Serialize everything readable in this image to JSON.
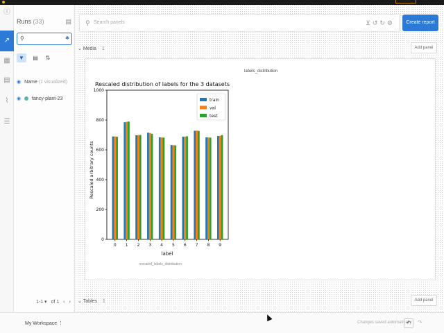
{
  "sidebar": {
    "runs_title": "Runs",
    "runs_count": "(33)",
    "name_label": "Name",
    "name_sub": "(1 visualized)",
    "run_name": "fancy-plant-23",
    "pager_range": "1-1 ▾",
    "pager_of": "of 1"
  },
  "header": {
    "search_placeholder": "Search panels",
    "create_report": "Create report"
  },
  "sections": {
    "media_label": "Media",
    "media_count": "1",
    "tables_label": "Tables",
    "tables_count": "1",
    "add_panel": "Add panel"
  },
  "panel": {
    "title": "labels_distribution",
    "caption": "rescaled_labels_distribution"
  },
  "footer": {
    "workspace": "My Workspace",
    "saved": "Changes saved automatically"
  },
  "colors": {
    "accent": "#2d7ad6",
    "train": "#1f77b4",
    "val": "#ff7f0e",
    "test": "#2ca02c"
  },
  "chart_data": {
    "type": "bar",
    "title": "Rescaled distribution of labels for the 3 datasets",
    "xlabel": "label",
    "ylabel": "Rescaled arbitrary counts",
    "categories": [
      "0",
      "1",
      "2",
      "3",
      "4",
      "5",
      "6",
      "7",
      "8",
      "9"
    ],
    "ylim": [
      0,
      1000
    ],
    "yticks": [
      0,
      200,
      400,
      600,
      800,
      1000
    ],
    "legend_position": "top-right",
    "series": [
      {
        "name": "train",
        "color": "#1f77b4",
        "values": [
          690,
          785,
          698,
          715,
          684,
          632,
          688,
          728,
          684,
          693
        ]
      },
      {
        "name": "val",
        "color": "#ff7f0e",
        "values": [
          690,
          788,
          699,
          713,
          683,
          631,
          689,
          729,
          683,
          694
        ]
      },
      {
        "name": "test",
        "color": "#2ca02c",
        "values": [
          688,
          790,
          700,
          708,
          682,
          630,
          691,
          727,
          682,
          699
        ]
      }
    ]
  }
}
